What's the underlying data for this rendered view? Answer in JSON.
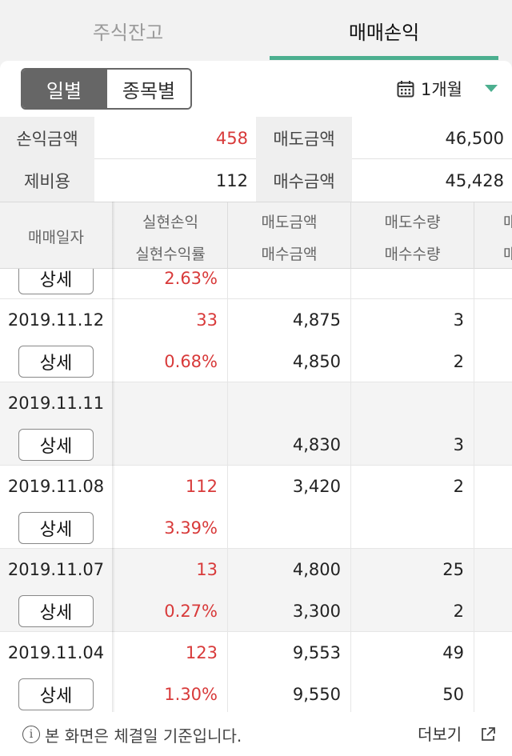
{
  "tabs": [
    {
      "label": "주식잔고",
      "active": false
    },
    {
      "label": "매매손익",
      "active": true
    }
  ],
  "accent_color": "#4caf8f",
  "loss_profit_color": "#d83a3a",
  "segmented": {
    "daily": "일별",
    "by_stock": "종목별",
    "selected": "일별"
  },
  "period": {
    "icon": "calendar-icon",
    "label": "1개월"
  },
  "summary": {
    "pnl_label": "손익금액",
    "pnl_value": "458",
    "sell_label": "매도금액",
    "sell_value": "46,500",
    "fee_label": "제비용",
    "fee_value": "112",
    "buy_label": "매수금액",
    "buy_value": "45,428"
  },
  "table": {
    "headers": {
      "date": "매매일자",
      "pnl": "실현손익",
      "pnl_rate": "실현수익률",
      "sell_amount": "매도금액",
      "buy_amount": "매수금액",
      "sell_qty": "매도수량",
      "buy_qty": "매수수량",
      "next_top": "매",
      "next_bottom": "매"
    },
    "partial_row": {
      "detail_label": "상세",
      "pnl_rate": "2.63%"
    },
    "rows": [
      {
        "date": "2019.11.12",
        "detail_label": "상세",
        "pnl": "33",
        "pnl_rate": "0.68%",
        "sell_amount": "4,875",
        "buy_amount": "4,850",
        "sell_qty": "3",
        "buy_qty": "2"
      },
      {
        "date": "2019.11.11",
        "detail_label": "상세",
        "pnl": "",
        "pnl_rate": "",
        "sell_amount": "",
        "buy_amount": "4,830",
        "sell_qty": "",
        "buy_qty": "3"
      },
      {
        "date": "2019.11.08",
        "detail_label": "상세",
        "pnl": "112",
        "pnl_rate": "3.39%",
        "sell_amount": "3,420",
        "buy_amount": "",
        "sell_qty": "2",
        "buy_qty": ""
      },
      {
        "date": "2019.11.07",
        "detail_label": "상세",
        "pnl": "13",
        "pnl_rate": "0.27%",
        "sell_amount": "4,800",
        "buy_amount": "3,300",
        "sell_qty": "25",
        "buy_qty": "2"
      },
      {
        "date": "2019.11.04",
        "detail_label": "상세",
        "pnl": "123",
        "pnl_rate": "1.30%",
        "sell_amount": "9,553",
        "buy_amount": "9,550",
        "sell_qty": "49",
        "buy_qty": "50"
      }
    ]
  },
  "footer": {
    "notice": "본 화면은 체결일 기준입니다.",
    "more_label": "더보기",
    "info_icon": "info-icon",
    "external_icon": "external-link-icon"
  }
}
